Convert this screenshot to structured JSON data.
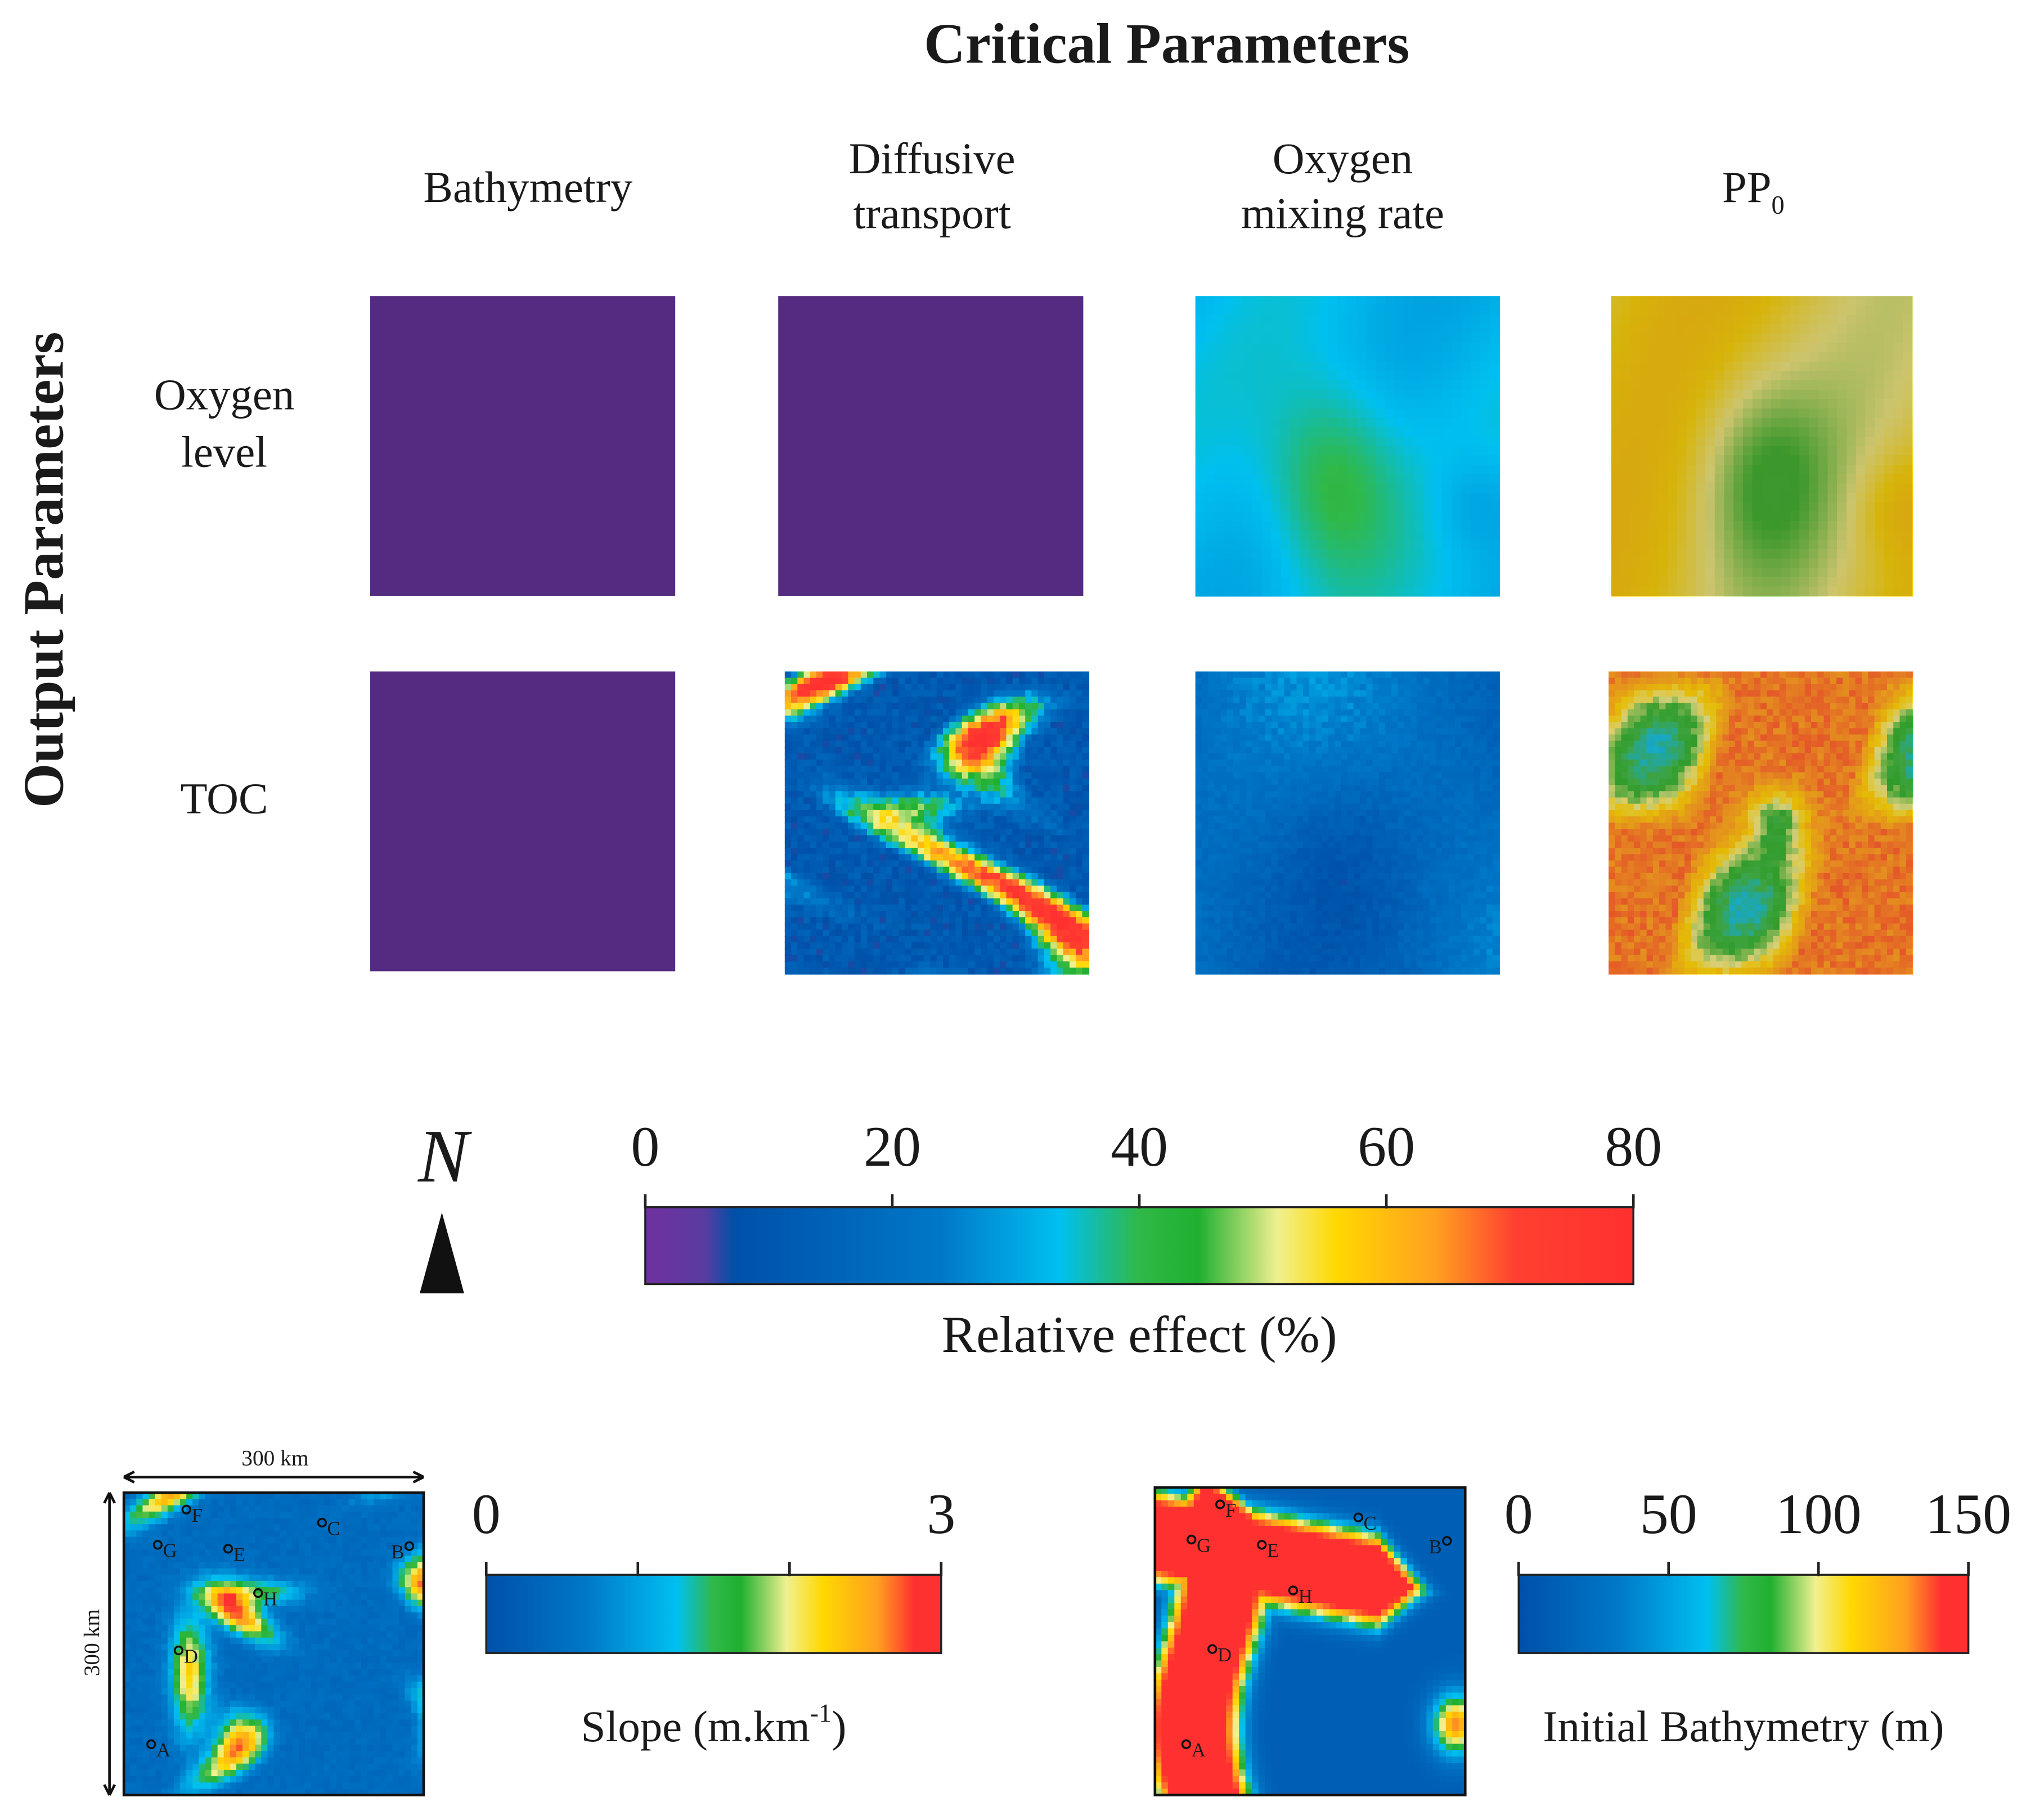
{
  "title": "Critical Parameters",
  "row_group_title": "Output Parameters",
  "columns": [
    {
      "lines": [
        "Bathymetry"
      ]
    },
    {
      "lines": [
        "Diffusive",
        "transport"
      ]
    },
    {
      "lines": [
        "Oxygen",
        "mixing rate"
      ]
    },
    {
      "text": "PP",
      "subscript": "0"
    }
  ],
  "rows": [
    {
      "lines": [
        "Oxygen",
        "level"
      ]
    },
    {
      "lines": [
        "TOC"
      ]
    }
  ],
  "north": "N",
  "effect_scale": {
    "label": "Relative effect (%)",
    "lim": [
      0,
      80
    ],
    "ticks": [
      0,
      20,
      40,
      60,
      80
    ]
  },
  "sites": [
    "A",
    "B",
    "C",
    "D",
    "E",
    "F",
    "G",
    "H"
  ],
  "slope_map": {
    "width_label": "300 km",
    "height_label": "300 km"
  },
  "slope_scale": {
    "label": "Slope (m.km",
    "label_sup": "-1",
    "label_end": ")",
    "lim": [
      0,
      3
    ],
    "ticks": [
      0,
      {
        "value": 1,
        "label": null
      },
      {
        "value": 2,
        "label": null
      },
      3
    ]
  },
  "bathymetry_scale": {
    "label": "Initial Bathymetry (m)",
    "lim": [
      0,
      150
    ],
    "ticks": [
      0,
      50,
      100,
      150
    ]
  }
}
